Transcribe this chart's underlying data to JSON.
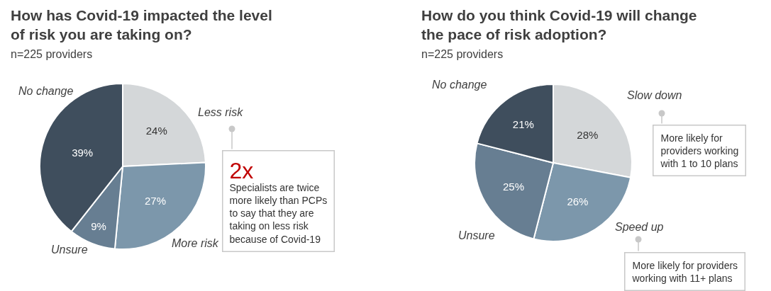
{
  "chart_data": [
    {
      "type": "pie",
      "title": "How has Covid-19 impacted the level\nof risk you are taking on?",
      "subtitle": "n=225 providers",
      "categories": [
        "Less risk",
        "More risk",
        "Unsure",
        "No change"
      ],
      "values": [
        24,
        27,
        9,
        39
      ],
      "value_labels": [
        "24%",
        "27%",
        "9%",
        "39%"
      ],
      "colors": [
        "#d4d7d9",
        "#7c97ab",
        "#677e92",
        "#3f4e5d"
      ],
      "annotations": [
        "2x",
        "Specialists are twice\nmore likely than PCPs\nto say that they are\ntaking on less risk\nbecause of Covid-19"
      ]
    },
    {
      "type": "pie",
      "title": "How do you think Covid-19 will change\nthe pace of risk adoption?",
      "subtitle": "n=225 providers",
      "categories": [
        "Slow down",
        "Speed up",
        "Unsure",
        "No change"
      ],
      "values": [
        28,
        26,
        25,
        21
      ],
      "value_labels": [
        "28%",
        "26%",
        "25%",
        "21%"
      ],
      "colors": [
        "#d4d7d9",
        "#7c97ab",
        "#677e92",
        "#3f4e5d"
      ],
      "annotations": [
        "More likely for\nproviders working\nwith 1 to 10 plans",
        "More likely for providers\nworking with 11+ plans"
      ]
    }
  ]
}
